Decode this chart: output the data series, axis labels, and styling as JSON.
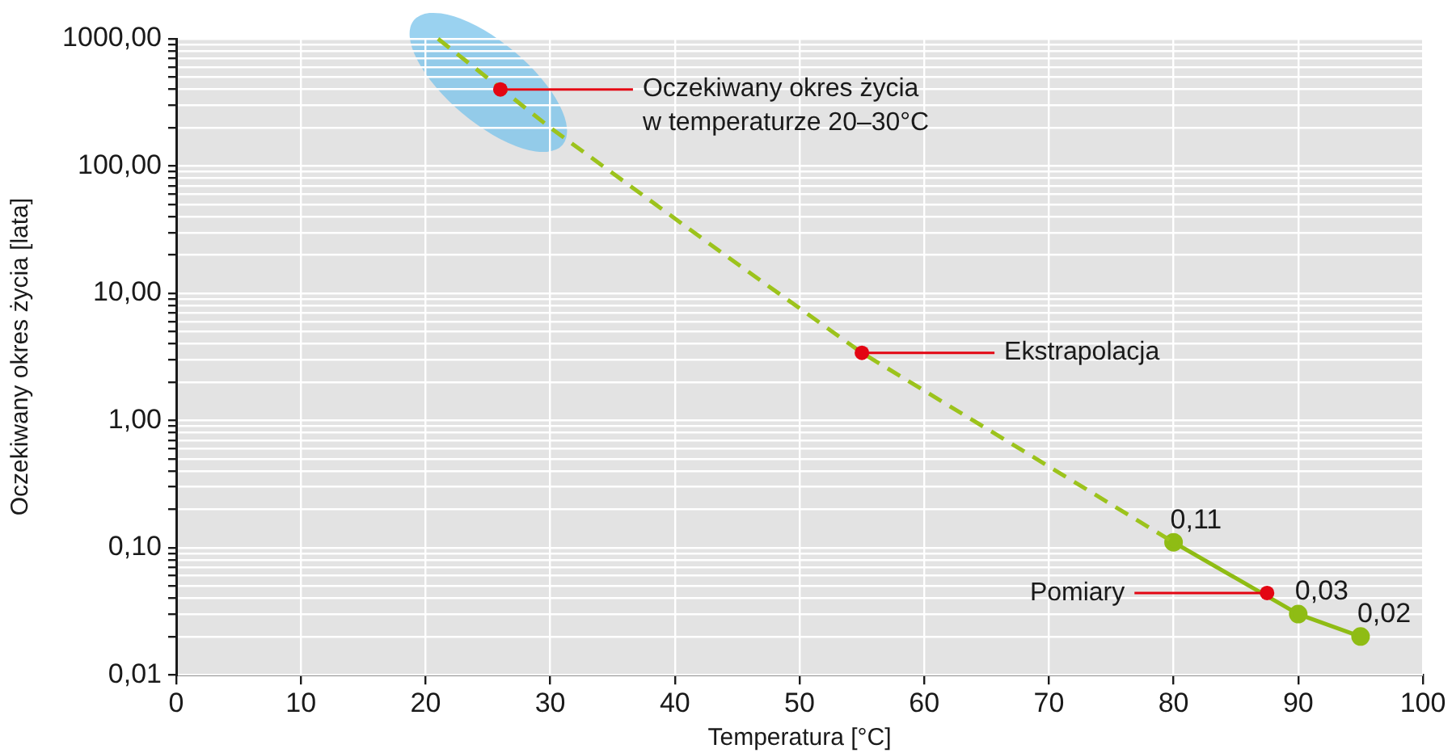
{
  "chart_data": {
    "type": "line",
    "xlabel": "Temperatura [°C]",
    "ylabel": "Oczekiwany okres życia [lata]",
    "series": [
      {
        "color": "#9cc31c",
        "line_style": "dashed",
        "marker": "none",
        "x": [
          21,
          30,
          44,
          55,
          80
        ],
        "values": [
          1000,
          200,
          20,
          3.4,
          0.11
        ]
      },
      {
        "color": "#8fbc14",
        "line_style": "solid",
        "marker": "circle",
        "x": [
          80,
          90,
          95
        ],
        "values": [
          0.11,
          0.03,
          0.02
        ],
        "value_labels": [
          "0,11",
          "0,03",
          "0,02"
        ]
      }
    ],
    "annotations": [
      {
        "text": "Oczekiwany okres życia\nw temperaturze 20–30°C",
        "x": 26,
        "y": 400
      },
      {
        "text": "Ekstrapolacja",
        "x": 55,
        "y": 3.4
      },
      {
        "text": "Pomiary",
        "x": 87.5,
        "y": 0.044
      }
    ],
    "log": "y",
    "xlim": [
      0,
      100
    ],
    "xticks": [
      0,
      10,
      20,
      30,
      40,
      50,
      60,
      70,
      80,
      90,
      100
    ],
    "ylim": [
      0.01,
      1000
    ],
    "yticks": [
      {
        "value": 0.01,
        "label": "0,01"
      },
      {
        "value": 0.02,
        "label": null
      },
      {
        "value": 0.03,
        "label": null
      },
      {
        "value": 0.04,
        "label": null
      },
      {
        "value": 0.05,
        "label": null
      },
      {
        "value": 0.06,
        "label": null
      },
      {
        "value": 0.07,
        "label": null
      },
      {
        "value": 0.08,
        "label": null
      },
      {
        "value": 0.09,
        "label": null
      },
      {
        "value": 0.1,
        "label": "0,10"
      },
      {
        "value": 0.2,
        "label": null
      },
      {
        "value": 0.3,
        "label": null
      },
      {
        "value": 0.4,
        "label": null
      },
      {
        "value": 0.5,
        "label": null
      },
      {
        "value": 0.6,
        "label": null
      },
      {
        "value": 0.7,
        "label": null
      },
      {
        "value": 0.8,
        "label": null
      },
      {
        "value": 0.9,
        "label": null
      },
      {
        "value": 1,
        "label": "1,00"
      },
      {
        "value": 2,
        "label": null
      },
      {
        "value": 3,
        "label": null
      },
      {
        "value": 4,
        "label": null
      },
      {
        "value": 5,
        "label": null
      },
      {
        "value": 6,
        "label": null
      },
      {
        "value": 7,
        "label": null
      },
      {
        "value": 8,
        "label": null
      },
      {
        "value": 9,
        "label": null
      },
      {
        "value": 10,
        "label": "10,00"
      },
      {
        "value": 20,
        "label": null
      },
      {
        "value": 30,
        "label": null
      },
      {
        "value": 40,
        "label": null
      },
      {
        "value": 50,
        "label": null
      },
      {
        "value": 60,
        "label": null
      },
      {
        "value": 70,
        "label": null
      },
      {
        "value": 80,
        "label": null
      },
      {
        "value": 90,
        "label": null
      },
      {
        "value": 100,
        "label": "100,00"
      },
      {
        "value": 200,
        "label": null
      },
      {
        "value": 300,
        "label": null
      },
      {
        "value": 400,
        "label": null
      },
      {
        "value": 500,
        "label": null
      },
      {
        "value": 600,
        "label": null
      },
      {
        "value": 700,
        "label": null
      },
      {
        "value": 800,
        "label": null
      },
      {
        "value": 900,
        "label": null
      },
      {
        "value": 1000,
        "label": "1000,00"
      }
    ],
    "grid": true
  }
}
